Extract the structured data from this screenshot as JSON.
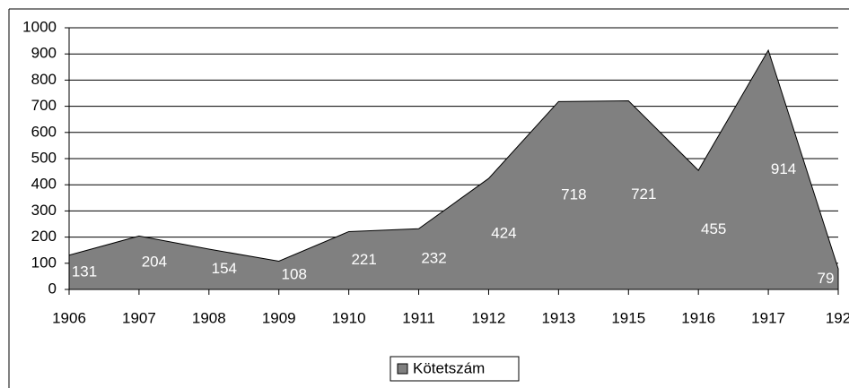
{
  "chart_data": {
    "type": "area",
    "categories": [
      "1906",
      "1907",
      "1908",
      "1909",
      "1910",
      "1911",
      "1912",
      "1913",
      "1915",
      "1916",
      "1917",
      "192"
    ],
    "series": [
      {
        "name": "Kötetszám",
        "color": "#808080",
        "values": [
          131,
          204,
          154,
          108,
          221,
          232,
          424,
          718,
          721,
          455,
          914,
          79
        ]
      }
    ],
    "ylim": [
      0,
      1000
    ],
    "yticks": [
      0,
      100,
      200,
      300,
      400,
      500,
      600,
      700,
      800,
      900,
      1000
    ],
    "grid": true,
    "legend": "bottom"
  }
}
